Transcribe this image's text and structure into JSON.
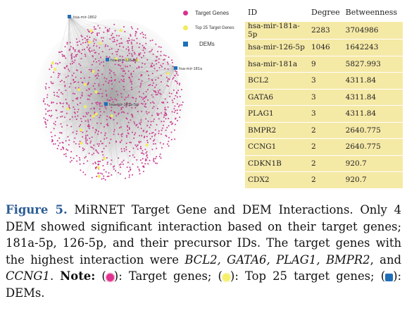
{
  "legend": {
    "items": [
      {
        "label": "Target Genes",
        "color": "#d6338f",
        "shape": "circle"
      },
      {
        "label": "Top 25 Target Genes",
        "color": "#f3ea5d",
        "shape": "circle"
      },
      {
        "label": "DEMs",
        "color": "#1f6fb8",
        "shape": "square"
      }
    ]
  },
  "network": {
    "dem_labels": [
      "hsa-mir-1802",
      "hsa-mir-126-5p",
      "hsa-mir-181a",
      "hsa-mir-181a-5p"
    ]
  },
  "table": {
    "headers": [
      "ID",
      "Degree",
      "Betweenness"
    ],
    "rows": [
      [
        "hsa-mir-181a-5p",
        "2283",
        "3704986"
      ],
      [
        "hsa-mir-126-5p",
        "1046",
        "1642243"
      ],
      [
        "hsa-mir-181a",
        "9",
        "5827.993"
      ],
      [
        "BCL2",
        "3",
        "4311.84"
      ],
      [
        "GATA6",
        "3",
        "4311.84"
      ],
      [
        "PLAG1",
        "3",
        "4311.84"
      ],
      [
        "BMPR2",
        "2",
        "2640.775"
      ],
      [
        "CCNG1",
        "2",
        "2640.775"
      ],
      [
        "CDKN1B",
        "2",
        "920.7"
      ],
      [
        "CDX2",
        "2",
        "920.7"
      ]
    ]
  },
  "caption": {
    "figure_label": "Figure 5.",
    "text_1": " MiRNET Target Gene and DEM Interactions. Only 4 DEM showed significant interaction based on their target genes; 181a-5p, 126-5p, and their precursor IDs. The target genes with the highest interaction were ",
    "genes": [
      "BCL2,",
      "GATA6,",
      "PLAG1,",
      "BMPR2",
      "CCNG1"
    ],
    "sep_1": " ",
    "sep_2": " ",
    "sep_3": " ",
    "sep_4": ", and ",
    "text_2": ". ",
    "note_label": "Note:",
    "note_1": " (",
    "note_2": "): Target genes; (",
    "note_3": "): Top 25 target genes; (",
    "note_4": "): DEMs."
  }
}
